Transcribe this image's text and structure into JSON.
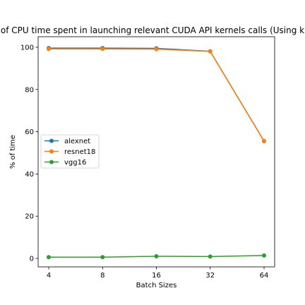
{
  "chart_data": {
    "type": "line",
    "title": "of CPU time spent in launching relevant CUDA API kernels calls (Using k",
    "xlabel": "Batch Sizes",
    "ylabel": "% of time",
    "categories": [
      "4",
      "8",
      "16",
      "32",
      "64"
    ],
    "ylim": [
      -4,
      105
    ],
    "yticks": [
      0,
      20,
      40,
      60,
      80,
      100
    ],
    "grid": false,
    "legend_position": "center-left",
    "series": [
      {
        "name": "alexnet",
        "color": "#1f77b4",
        "values": [
          99.6,
          99.6,
          99.5,
          98.1,
          55.6
        ]
      },
      {
        "name": "resnet18",
        "color": "#ff7f0e",
        "values": [
          99.2,
          99.2,
          99.1,
          98.0,
          55.5
        ]
      },
      {
        "name": "vgg16",
        "color": "#2ca02c",
        "values": [
          0.6,
          0.6,
          1.0,
          0.9,
          1.4
        ]
      }
    ]
  }
}
